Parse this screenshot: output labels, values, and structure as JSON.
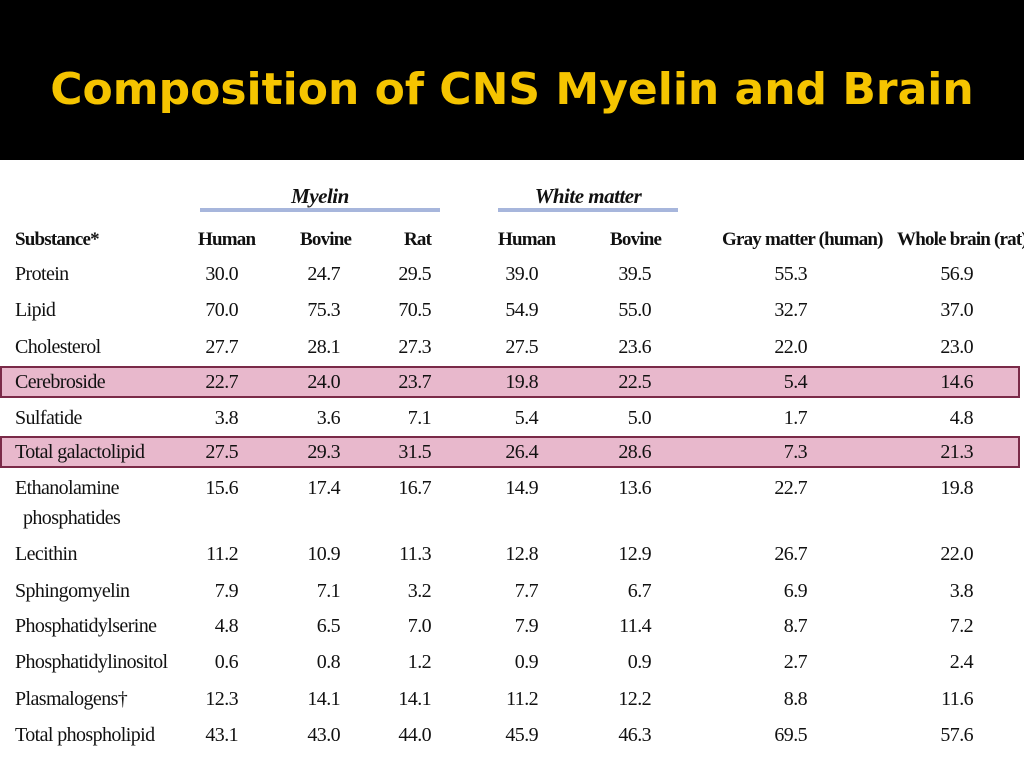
{
  "slide": {
    "title": "Composition of CNS Myelin and Brain",
    "title_color": "#f5c400",
    "header_bg": "#000000",
    "highlight_color": "#e8b8cc",
    "highlight_border": "#7a2a48"
  },
  "table": {
    "groups": {
      "myelin": "Myelin",
      "white_matter": "White matter"
    },
    "headers": [
      "Substance*",
      "Human",
      "Bovine",
      "Rat",
      "Human",
      "Bovine",
      "Gray matter (human)",
      "Whole brain (rat)"
    ],
    "rows": [
      {
        "substance": "Protein",
        "values": [
          "30.0",
          "24.7",
          "29.5",
          "39.0",
          "39.5",
          "55.3",
          "56.9"
        ]
      },
      {
        "substance": "Lipid",
        "values": [
          "70.0",
          "75.3",
          "70.5",
          "54.9",
          "55.0",
          "32.7",
          "37.0"
        ]
      },
      {
        "substance": "Cholesterol",
        "values": [
          "27.7",
          "28.1",
          "27.3",
          "27.5",
          "23.6",
          "22.0",
          "23.0"
        ]
      },
      {
        "substance": "Cerebroside",
        "values": [
          "22.7",
          "24.0",
          "23.7",
          "19.8",
          "22.5",
          "5.4",
          "14.6"
        ],
        "highlighted": true
      },
      {
        "substance": "Sulfatide",
        "values": [
          "3.8",
          "3.6",
          "7.1",
          "5.4",
          "5.0",
          "1.7",
          "4.8"
        ]
      },
      {
        "substance": "Total galactolipid",
        "values": [
          "27.5",
          "29.3",
          "31.5",
          "26.4",
          "28.6",
          "7.3",
          "21.3"
        ],
        "highlighted": true
      },
      {
        "substance_line1": "Ethanolamine",
        "substance_line2": "phosphatides",
        "values": [
          "15.6",
          "17.4",
          "16.7",
          "14.9",
          "13.6",
          "22.7",
          "19.8"
        ]
      },
      {
        "substance": "Lecithin",
        "values": [
          "11.2",
          "10.9",
          "11.3",
          "12.8",
          "12.9",
          "26.7",
          "22.0"
        ]
      },
      {
        "substance": "Sphingomyelin",
        "values": [
          "7.9",
          "7.1",
          "3.2",
          "7.7",
          "6.7",
          "6.9",
          "3.8"
        ]
      },
      {
        "substance": "Phosphatidylserine",
        "values": [
          "4.8",
          "6.5",
          "7.0",
          "7.9",
          "11.4",
          "8.7",
          "7.2"
        ]
      },
      {
        "substance": "Phosphatidylinositol",
        "values": [
          "0.6",
          "0.8",
          "1.2",
          "0.9",
          "0.9",
          "2.7",
          "2.4"
        ]
      },
      {
        "substance": "Plasmalogens†",
        "values": [
          "12.3",
          "14.1",
          "14.1",
          "11.2",
          "12.2",
          "8.8",
          "11.6"
        ]
      },
      {
        "substance": "Total phospholipid",
        "values": [
          "43.1",
          "43.0",
          "44.0",
          "45.9",
          "46.3",
          "69.5",
          "57.6"
        ]
      }
    ]
  }
}
